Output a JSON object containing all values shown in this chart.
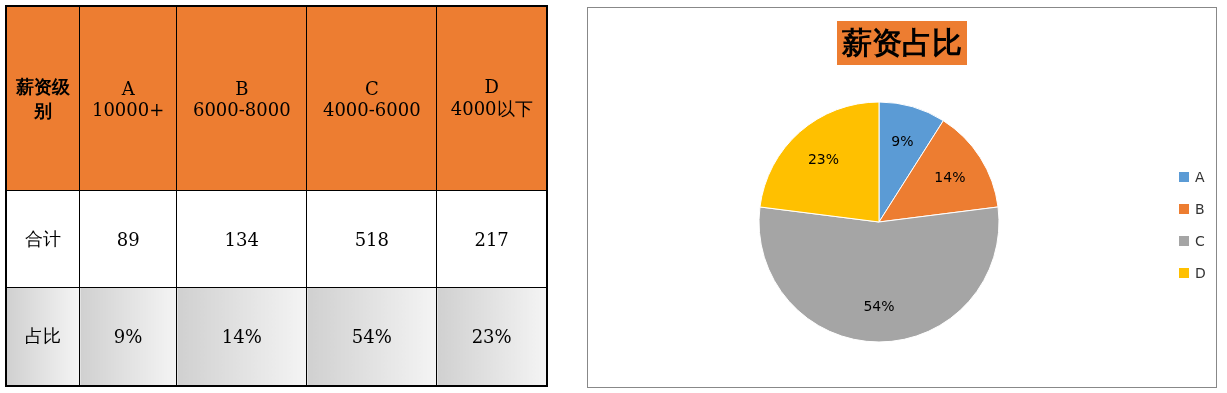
{
  "chart_data": [
    {
      "type": "other",
      "ylabel": "薪资级别",
      "categories": [
        "A 10000+",
        "B 6000-8000",
        "C 4000-6000",
        "D 4000以下"
      ],
      "y_categories": [
        "合计",
        "占比"
      ],
      "cell_labels": [
        [
          "89",
          "134",
          "518",
          "217"
        ],
        [
          "9%",
          "14%",
          "54%",
          "23%"
        ]
      ]
    },
    {
      "type": "pie",
      "title": "薪资占比",
      "categories": [
        "A",
        "B",
        "C",
        "D"
      ],
      "values": [
        9,
        14,
        54,
        23
      ],
      "colors": [
        "#5b9bd5",
        "#ed7d31",
        "#a5a5a5",
        "#ffc000"
      ],
      "value_labels": [
        "9%",
        "14%",
        "54%",
        "23%"
      ],
      "legend": "right"
    }
  ]
}
